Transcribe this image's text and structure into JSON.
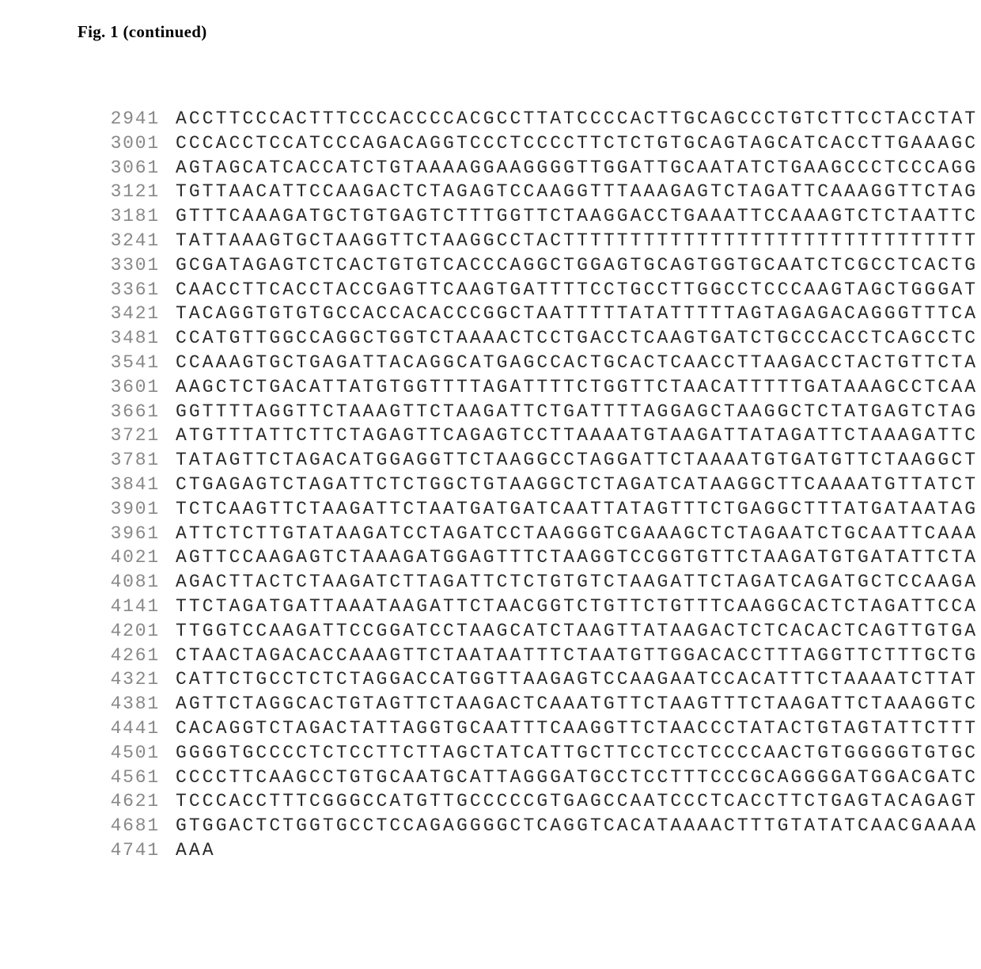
{
  "title": "Fig. 1 (continued)",
  "style": {
    "background_color": "#ffffff",
    "title_font": "Times New Roman",
    "title_fontsize": 21,
    "title_fontweight": "bold",
    "title_color": "#000000",
    "seq_font": "Courier New",
    "seq_fontsize": 23,
    "seq_line_height": 30.8,
    "seq_letter_spacing": 3.1,
    "pos_color": "#888888",
    "seq_color": "#2a2a2a",
    "pos_width": 106,
    "left_padding": 96
  },
  "rows": [
    {
      "pos": "2941",
      "seq": "ACCTTCCCACTTTCCCACCCCACGCCTTATCCCCACTTGCAGCCCTGTCTTCCTACCTAT"
    },
    {
      "pos": "3001",
      "seq": "CCCACCTCCATCCCAGACAGGTCCCTCCCCTTCTCTGTGCAGTAGCATCACCTTGAAAGC"
    },
    {
      "pos": "3061",
      "seq": "AGTAGCATCACCATCTGTAAAAGGAAGGGGTTGGATTGCAATATCTGAAGCCCTCCCAGG"
    },
    {
      "pos": "3121",
      "seq": "TGTTAACATTCCAAGACTCTAGAGTCCAAGGTTTAAAGAGTCTAGATTCAAAGGTTCTAG"
    },
    {
      "pos": "3181",
      "seq": "GTTTCAAAGATGCTGTGAGTCTTTGGTTCTAAGGACCTGAAATTCCAAAGTCTCTAATTC"
    },
    {
      "pos": "3241",
      "seq": "TATTAAAGTGCTAAGGTTCTAAGGCCTACTTTTTTTTTTTTTTTTTTTTTTTTTTTTTTT"
    },
    {
      "pos": "3301",
      "seq": "GCGATAGAGTCTCACTGTGTCACCCAGGCTGGAGTGCAGTGGTGCAATCTCGCCTCACTG"
    },
    {
      "pos": "3361",
      "seq": "CAACCTTCACCTACCGAGTTCAAGTGATTTTCCTGCCTTGGCCTCCCAAGTAGCTGGGAT"
    },
    {
      "pos": "3421",
      "seq": "TACAGGTGTGTGCCACCACACCCGGCTAATTTTTATATTTTTAGTAGAGACAGGGTTTCA"
    },
    {
      "pos": "3481",
      "seq": "CCATGTTGGCCAGGCTGGTCTAAAACTCCTGACCTCAAGTGATCTGCCCACCTCAGCCTC"
    },
    {
      "pos": "3541",
      "seq": "CCAAAGTGCTGAGATTACAGGCATGAGCCACTGCACTCAACCTTAAGACCTACTGTTCTA"
    },
    {
      "pos": "3601",
      "seq": "AAGCTCTGACATTATGTGGTTTTAGATTTTCTGGTTCTAACATTTTTGATAAAGCCTCAA"
    },
    {
      "pos": "3661",
      "seq": "GGTTTTAGGTTCTAAAGTTCTAAGATTCTGATTTTAGGAGCTAAGGCTCTATGAGTCTAG"
    },
    {
      "pos": "3721",
      "seq": "ATGTTTATTCTTCTAGAGTTCAGAGTCCTTAAAATGTAAGATTATAGATTCTAAAGATTC"
    },
    {
      "pos": "3781",
      "seq": "TATAGTTCTAGACATGGAGGTTCTAAGGCCTAGGATTCTAAAATGTGATGTTCTAAGGCT"
    },
    {
      "pos": "3841",
      "seq": "CTGAGAGTCTAGATTCTCTGGCTGTAAGGCTCTAGATCATAAGGCTTCAAAATGTTATCT"
    },
    {
      "pos": "3901",
      "seq": "TCTCAAGTTCTAAGATTCTAATGATGATCAATTATAGTTTCTGAGGCTTTATGATAATAG"
    },
    {
      "pos": "3961",
      "seq": "ATTCTCTTGTATAAGATCCTAGATCCTAAGGGTCGAAAGCTCTAGAATCTGCAATTCAAA"
    },
    {
      "pos": "4021",
      "seq": "AGTTCCAAGAGTCTAAAGATGGAGTTTCTAAGGTCCGGTGTTCTAAGATGTGATATTCTA"
    },
    {
      "pos": "4081",
      "seq": "AGACTTACTCTAAGATCTTAGATTCTCTGTGTCTAAGATTCTAGATCAGATGCTCCAAGA"
    },
    {
      "pos": "4141",
      "seq": "TTCTAGATGATTAAATAAGATTCTAACGGTCTGTTCTGTTTCAAGGCACTCTAGATTCCA"
    },
    {
      "pos": "4201",
      "seq": "TTGGTCCAAGATTCCGGATCCTAAGCATCTAAGTTATAAGACTCTCACACTCAGTTGTGA"
    },
    {
      "pos": "4261",
      "seq": "CTAACTAGACACCAAAGTTCTAATAATTTCTAATGTTGGACACCTTTAGGTTCTTTGCTG"
    },
    {
      "pos": "4321",
      "seq": "CATTCTGCCTCTCTAGGACCATGGTTAAGAGTCCAAGAATCCACATTTCTAAAATCTTAT"
    },
    {
      "pos": "4381",
      "seq": "AGTTCTAGGCACTGTAGTTCTAAGACTCAAATGTTCTAAGTTTCTAAGATTCTAAAGGTC"
    },
    {
      "pos": "4441",
      "seq": "CACAGGTCTAGACTATTAGGTGCAATTTCAAGGTTCTAACCCTATACTGTAGTATTCTTT"
    },
    {
      "pos": "4501",
      "seq": "GGGGTGCCCCTCTCCTTCTTAGCTATCATTGCTTCCTCCTCCCCAACTGTGGGGGTGTGC"
    },
    {
      "pos": "4561",
      "seq": "CCCCTTCAAGCCTGTGCAATGCATTAGGGATGCCTCCTTTCCCGCAGGGGATGGACGATC"
    },
    {
      "pos": "4621",
      "seq": "TCCCACCTTTCGGGCCATGTTGCCCCCGTGAGCCAATCCCTCACCTTCTGAGTACAGAGT"
    },
    {
      "pos": "4681",
      "seq": "GTGGACTCTGGTGCCTCCAGAGGGGCTCAGGTCACATAAAACTTTGTATATCAACGAAAA"
    },
    {
      "pos": "4741",
      "seq": "AAA"
    }
  ]
}
